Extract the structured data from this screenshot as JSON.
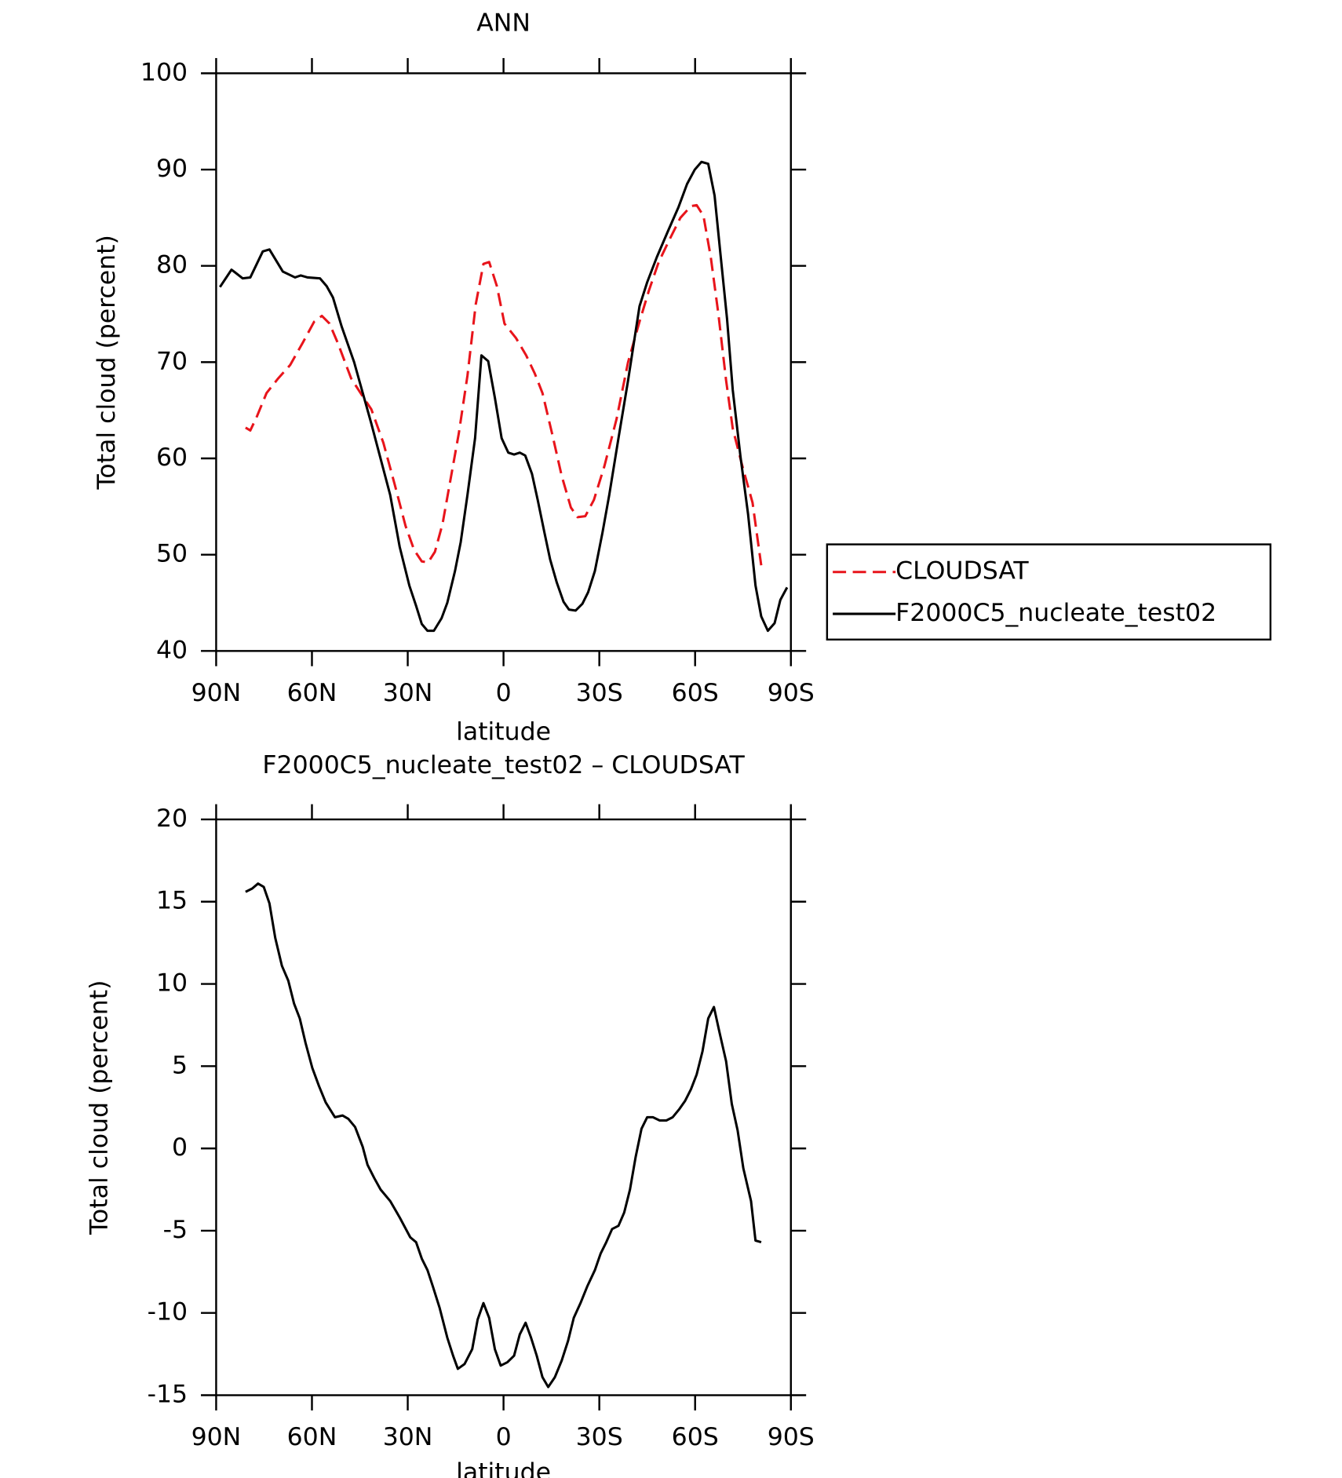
{
  "chart_data": [
    {
      "type": "line",
      "title": "ANN",
      "xlabel": "latitude",
      "ylabel": "Total cloud (percent)",
      "xlim": [
        90,
        -90
      ],
      "xticks": [
        {
          "value": 90,
          "label": "90N"
        },
        {
          "value": 60,
          "label": "60N"
        },
        {
          "value": 30,
          "label": "30N"
        },
        0,
        {
          "value": -30,
          "label": "30S"
        },
        {
          "value": -60,
          "label": "60S"
        },
        {
          "value": -90,
          "label": "90S"
        }
      ],
      "ylim": [
        40,
        100
      ],
      "yticks": [
        40,
        50,
        60,
        70,
        80,
        90,
        100
      ],
      "legend": "right",
      "series": [
        {
          "name": "CLOUDSAT",
          "color": "#e8141b",
          "dash": true,
          "x": [
            80.8,
            79.3,
            77.2,
            74.2,
            70.6,
            66.8,
            62.9,
            59.3,
            56.9,
            54.5,
            51.9,
            47.7,
            44.4,
            41.4,
            37.6,
            34,
            30.7,
            28,
            25.6,
            23.6,
            21.5,
            19.1,
            16.4,
            14,
            11.3,
            8.7,
            6.3,
            4.5,
            2.1,
            -0.3,
            -3.9,
            -7.1,
            -9.8,
            -12.2,
            -15.2,
            -18.2,
            -21.1,
            -23.2,
            -25.6,
            -28.3,
            -31.6,
            -35.4,
            -39,
            -42.6,
            -45.6,
            -48.6,
            -51.8,
            -55.4,
            -58.7,
            -60.5,
            -62.6,
            -64.9,
            -67.3,
            -69.7,
            -71.8,
            -74.8,
            -78,
            -80.7
          ],
          "values": [
            63.2,
            62.9,
            64.4,
            66.8,
            68.3,
            69.7,
            72,
            74.2,
            74.8,
            74,
            72,
            68.3,
            66.6,
            65.1,
            61.6,
            57.2,
            53,
            50.5,
            49.3,
            49.2,
            50.3,
            53.2,
            58.2,
            62.6,
            68.6,
            76,
            80.2,
            80.4,
            77.9,
            74,
            72.5,
            70.7,
            68.8,
            66.8,
            62.6,
            58.2,
            54.9,
            53.9,
            54,
            55.7,
            59.2,
            64.1,
            70,
            74.2,
            77.5,
            80.4,
            82.6,
            85,
            86.2,
            86.3,
            85.2,
            80.9,
            75,
            68.1,
            63.1,
            59.2,
            55.4,
            48.9
          ]
        },
        {
          "name": "F2000C5_nucleate_test02",
          "color": "#000000",
          "dash": false,
          "x": [
            88.8,
            85.2,
            84,
            81.7,
            79.3,
            75.4,
            73.3,
            69.1,
            65.3,
            63.5,
            61.4,
            57.5,
            55.4,
            53.4,
            50.7,
            46.8,
            41.4,
            35.5,
            32.5,
            29.5,
            27.4,
            25.6,
            23.8,
            21.8,
            19.4,
            17.6,
            15.2,
            13.4,
            11.3,
            8.9,
            6.9,
            4.8,
            2.7,
            0.6,
            -1.5,
            -3.3,
            -5.1,
            -6.8,
            -8.9,
            -10.7,
            -12.8,
            -14.6,
            -16.7,
            -18.8,
            -20.5,
            -22.6,
            -24.7,
            -26.5,
            -28.6,
            -31,
            -33.1,
            -36,
            -39,
            -42.6,
            -45,
            -48,
            -51.5,
            -54.8,
            -57.5,
            -59.9,
            -62,
            -64.1,
            -66.1,
            -67.9,
            -70,
            -71.8,
            -74.2,
            -76.6,
            -78.9,
            -80.7,
            -82.8,
            -84.9,
            -86.7,
            -88.8
          ],
          "values": [
            77.8,
            79.6,
            79.3,
            78.7,
            78.8,
            81.5,
            81.7,
            79.4,
            78.8,
            79,
            78.8,
            78.7,
            77.9,
            76.7,
            73.7,
            70,
            63.6,
            56.2,
            50.8,
            46.8,
            44.7,
            42.8,
            42.1,
            42.1,
            43.4,
            45,
            48.3,
            51.3,
            56.2,
            62.1,
            70.7,
            70.1,
            66.3,
            62.1,
            60.6,
            60.4,
            60.6,
            60.3,
            58.4,
            55.7,
            52.3,
            49.5,
            47.1,
            45.1,
            44.3,
            44.2,
            44.9,
            46.1,
            48.3,
            52.3,
            56.2,
            62.1,
            68.1,
            75.8,
            78.3,
            80.9,
            83.6,
            86.1,
            88.5,
            90,
            90.8,
            90.6,
            87.3,
            81.4,
            74.5,
            67.1,
            60.2,
            54.2,
            46.8,
            43.6,
            42.1,
            42.9,
            45.3,
            46.6
          ]
        }
      ]
    },
    {
      "type": "line",
      "title": "F2000C5_nucleate_test02 – CLOUDSAT",
      "xlabel": "latitude",
      "ylabel": "Total cloud (percent)",
      "xlim": [
        90,
        -90
      ],
      "xticks": [
        {
          "value": 90,
          "label": "90N"
        },
        {
          "value": 60,
          "label": "60N"
        },
        {
          "value": 30,
          "label": "30N"
        },
        0,
        {
          "value": -30,
          "label": "30S"
        },
        {
          "value": -60,
          "label": "60S"
        },
        {
          "value": -90,
          "label": "90S"
        }
      ],
      "ylim": [
        -15,
        20
      ],
      "yticks": [
        -15,
        -10,
        -5,
        0,
        5,
        10,
        15,
        20
      ],
      "series": [
        {
          "color": "#000000",
          "dash": false,
          "x": [
            80.8,
            78.7,
            76.9,
            75.1,
            73.3,
            71.5,
            69.4,
            67.4,
            65.6,
            63.8,
            62,
            59.9,
            57.8,
            55.7,
            52.8,
            50.4,
            48.6,
            46.5,
            44.1,
            42.6,
            40.5,
            38.5,
            35.5,
            32.5,
            29.2,
            27.4,
            25.6,
            23.8,
            22.1,
            20,
            17.6,
            15.8,
            14.3,
            12.2,
            9.8,
            8.1,
            6.3,
            4.5,
            2.7,
            0.9,
            -1.2,
            -3.3,
            -5.1,
            -6.9,
            -8.6,
            -10.4,
            -12.2,
            -14,
            -16.1,
            -18.2,
            -20.2,
            -22,
            -24.1,
            -26.2,
            -28.6,
            -30.4,
            -32.2,
            -34,
            -36,
            -37.8,
            -39.6,
            -41.4,
            -43.2,
            -45,
            -46.8,
            -48.9,
            -51,
            -53,
            -55.1,
            -56.9,
            -58.7,
            -60.5,
            -62.3,
            -64.1,
            -65.9,
            -67.6,
            -69.7,
            -71.5,
            -73.3,
            -75.1,
            -77.5,
            -78.9,
            -80.7
          ],
          "values": [
            15.6,
            15.8,
            16.1,
            15.9,
            14.9,
            12.8,
            11.1,
            10.2,
            8.8,
            7.9,
            6.4,
            4.9,
            3.8,
            2.8,
            1.9,
            2,
            1.8,
            1.3,
            0.1,
            -1,
            -1.8,
            -2.5,
            -3.2,
            -4.2,
            -5.4,
            -5.7,
            -6.7,
            -7.4,
            -8.4,
            -9.7,
            -11.5,
            -12.6,
            -13.4,
            -13.1,
            -12.2,
            -10.4,
            -9.4,
            -10.3,
            -12.2,
            -13.2,
            -13,
            -12.6,
            -11.3,
            -10.6,
            -11.5,
            -12.6,
            -13.9,
            -14.5,
            -13.9,
            -12.9,
            -11.7,
            -10.3,
            -9.4,
            -8.4,
            -7.4,
            -6.4,
            -5.7,
            -4.9,
            -4.7,
            -3.9,
            -2.5,
            -0.5,
            1.2,
            1.9,
            1.9,
            1.7,
            1.7,
            1.9,
            2.4,
            2.9,
            3.6,
            4.5,
            5.9,
            7.9,
            8.6,
            7.1,
            5.3,
            2.7,
            1.1,
            -1.2,
            -3.2,
            -5.6,
            -5.7
          ]
        }
      ]
    }
  ]
}
